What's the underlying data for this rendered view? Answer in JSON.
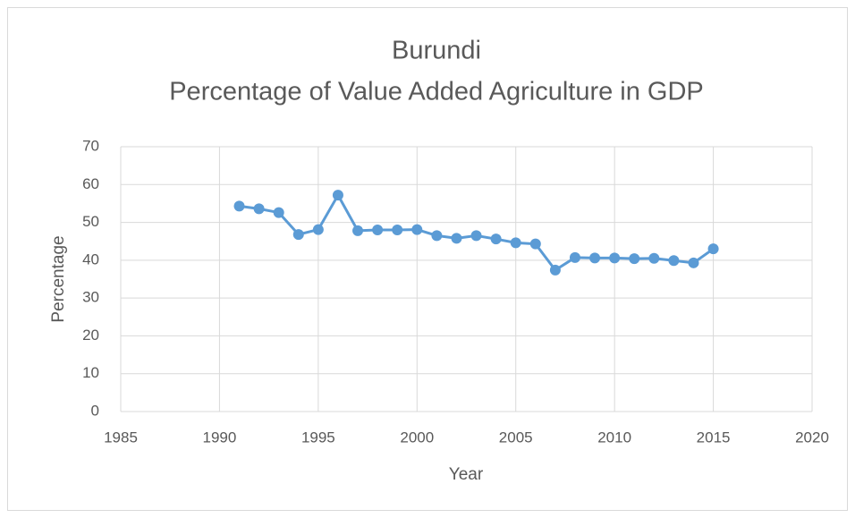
{
  "chart_data": {
    "type": "line",
    "title": "Burundi",
    "subtitle": "Percentage of Value Added Agriculture in GDP",
    "x_label": "Year",
    "y_label": "Percentage",
    "x": [
      1991,
      1992,
      1993,
      1994,
      1995,
      1996,
      1997,
      1998,
      1999,
      2000,
      2001,
      2002,
      2003,
      2004,
      2005,
      2006,
      2007,
      2008,
      2009,
      2010,
      2011,
      2012,
      2013,
      2014,
      2015
    ],
    "series": [
      {
        "name": "Percentage",
        "color": "#5b9bd5",
        "values": [
          54.3,
          53.6,
          52.6,
          46.8,
          48.1,
          57.2,
          47.8,
          48.0,
          48.0,
          48.1,
          46.5,
          45.8,
          46.5,
          45.6,
          44.6,
          44.3,
          37.4,
          40.7,
          40.6,
          40.6,
          40.4,
          40.5,
          39.9,
          39.3,
          43.0
        ]
      }
    ],
    "xlim": [
      1985,
      2020
    ],
    "xticks": [
      1985,
      1990,
      1995,
      2000,
      2005,
      2010,
      2015,
      2020
    ],
    "ylim": [
      0,
      70
    ],
    "yticks": [
      0,
      10,
      20,
      30,
      40,
      50,
      60,
      70
    ],
    "grid": true
  }
}
